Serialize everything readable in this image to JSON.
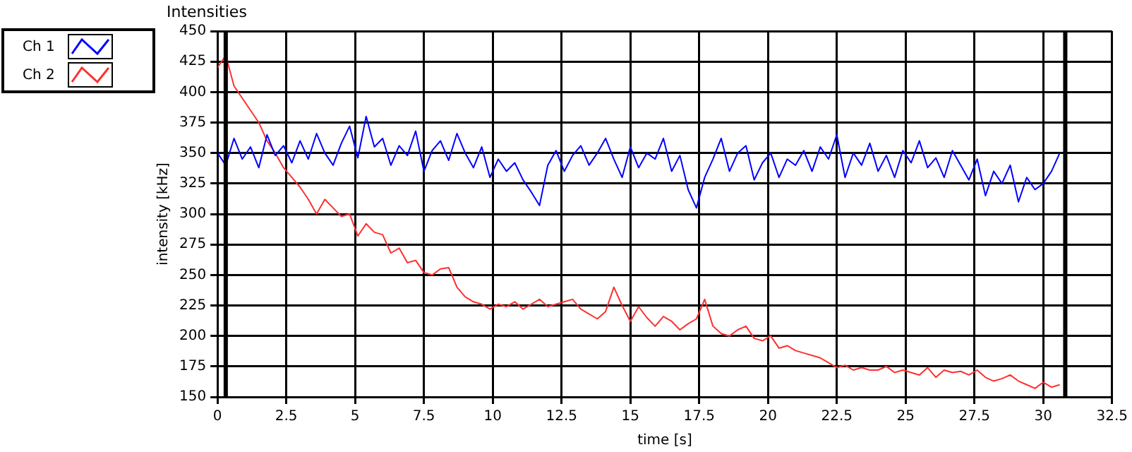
{
  "chart_data": {
    "type": "line",
    "title": "Intensities",
    "xlabel": "time [s]",
    "ylabel": "intensity [kHz]",
    "x": [
      0,
      0.3,
      0.6,
      0.9,
      1.2,
      1.5,
      1.8,
      2.1,
      2.4,
      2.7,
      3,
      3.3,
      3.6,
      3.9,
      4.2,
      4.5,
      4.8,
      5.1,
      5.4,
      5.7,
      6,
      6.3,
      6.6,
      6.9,
      7.2,
      7.5,
      7.8,
      8.1,
      8.4,
      8.7,
      9,
      9.3,
      9.6,
      9.9,
      10.2,
      10.5,
      10.8,
      11.1,
      11.4,
      11.7,
      12,
      12.3,
      12.6,
      12.9,
      13.2,
      13.5,
      13.8,
      14.1,
      14.4,
      14.7,
      15,
      15.3,
      15.6,
      15.9,
      16.2,
      16.5,
      16.8,
      17.1,
      17.4,
      17.7,
      18,
      18.3,
      18.6,
      18.9,
      19.2,
      19.5,
      19.8,
      20.1,
      20.4,
      20.7,
      21,
      21.3,
      21.6,
      21.9,
      22.2,
      22.5,
      22.8,
      23.1,
      23.4,
      23.7,
      24,
      24.3,
      24.6,
      24.9,
      25.2,
      25.5,
      25.8,
      26.1,
      26.4,
      26.7,
      27,
      27.3,
      27.6,
      27.9,
      28.2,
      28.5,
      28.8,
      29.1,
      29.4,
      29.7,
      30,
      30.3,
      30.6
    ],
    "series": [
      {
        "name": "Ch 1",
        "color": "#0000ff",
        "values": [
          350,
          340,
          362,
          345,
          355,
          338,
          365,
          348,
          356,
          342,
          360,
          345,
          366,
          350,
          340,
          358,
          372,
          346,
          380,
          355,
          362,
          340,
          356,
          348,
          368,
          335,
          352,
          360,
          344,
          366,
          350,
          338,
          355,
          330,
          345,
          335,
          342,
          328,
          318,
          307,
          340,
          352,
          335,
          348,
          356,
          340,
          350,
          362,
          345,
          330,
          355,
          338,
          350,
          345,
          362,
          335,
          348,
          320,
          305,
          330,
          345,
          362,
          335,
          350,
          356,
          328,
          342,
          350,
          330,
          345,
          340,
          352,
          335,
          355,
          345,
          365,
          330,
          350,
          340,
          358,
          335,
          348,
          330,
          352,
          342,
          360,
          338,
          346,
          330,
          352,
          340,
          328,
          345,
          315,
          335,
          325,
          340,
          310,
          330,
          320,
          325,
          335,
          350
        ]
      },
      {
        "name": "Ch 2",
        "color": "#ff3030",
        "values": [
          420,
          430,
          405,
          395,
          385,
          375,
          360,
          350,
          338,
          330,
          322,
          312,
          300,
          312,
          305,
          298,
          300,
          282,
          292,
          285,
          283,
          268,
          272,
          260,
          262,
          252,
          250,
          255,
          256,
          240,
          232,
          228,
          226,
          222,
          226,
          224,
          228,
          222,
          226,
          230,
          224,
          226,
          228,
          230,
          222,
          218,
          214,
          220,
          240,
          225,
          212,
          224,
          215,
          208,
          216,
          212,
          205,
          210,
          214,
          230,
          208,
          202,
          200,
          205,
          208,
          198,
          196,
          200,
          190,
          192,
          188,
          186,
          184,
          182,
          178,
          174,
          176,
          172,
          174,
          172,
          172,
          175,
          170,
          172,
          170,
          168,
          174,
          166,
          172,
          170,
          171,
          168,
          172,
          166,
          163,
          165,
          168,
          163,
          160,
          157,
          162,
          158,
          160
        ]
      }
    ],
    "xlim": [
      0,
      32.5
    ],
    "xticks": [
      0,
      2.5,
      5,
      7.5,
      10,
      12.5,
      15,
      17.5,
      20,
      22.5,
      25,
      27.5,
      30,
      32.5
    ],
    "ylim": [
      150,
      450
    ],
    "yticks": [
      150,
      175,
      200,
      225,
      250,
      275,
      300,
      325,
      350,
      375,
      400,
      425,
      450
    ],
    "ref_lines": [
      {
        "axis": "x",
        "value": 0.3,
        "color": "#000000"
      },
      {
        "axis": "x",
        "value": 30.8,
        "color": "#000000"
      }
    ],
    "grid": true,
    "legend": "top left",
    "line_style": "solid",
    "marker": "none"
  }
}
